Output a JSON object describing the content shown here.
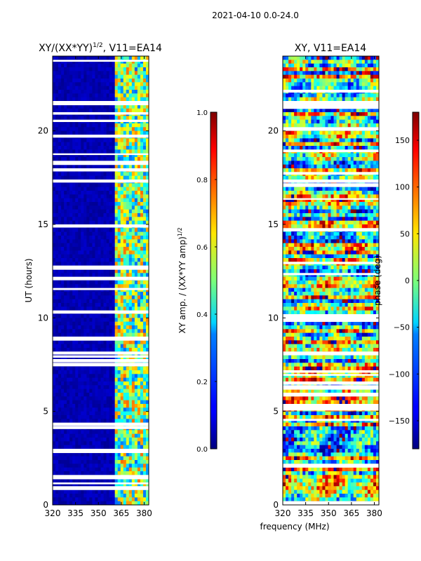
{
  "figure": {
    "suptitle": "2021-04-10 0.0-24.0",
    "xlabel": "frequency (MHz)"
  },
  "chart_data": [
    {
      "type": "heatmap",
      "title_main": "XY/(XX*YY)",
      "title_sup": "1/2",
      "title_tail": ", V11=EA14",
      "ylabel": "UT (hours)",
      "xlim": [
        320,
        383
      ],
      "ylim": [
        0,
        24
      ],
      "xticks": [
        320,
        335,
        350,
        365,
        380
      ],
      "yticks": [
        0,
        5,
        10,
        15,
        20
      ],
      "colorscale": "jet",
      "colorbar": {
        "label_main": "XY amp. / (XX*YY amp)",
        "label_sup": "1/2",
        "range": [
          0.0,
          1.0
        ],
        "ticks": [
          0.0,
          0.2,
          0.4,
          0.6,
          0.8,
          1.0
        ],
        "tick_labels": [
          "0.0",
          "0.2",
          "0.4",
          "0.6",
          "0.8",
          "1.0"
        ]
      }
    },
    {
      "type": "heatmap",
      "title": "XY, V11=EA14",
      "xlim": [
        320,
        383
      ],
      "ylim": [
        0,
        24
      ],
      "xticks": [
        320,
        335,
        350,
        365,
        380
      ],
      "yticks": [
        0,
        5,
        10,
        15,
        20
      ],
      "colorscale": "jet",
      "colorbar": {
        "label": "phase (deg)",
        "range": [
          -180,
          180
        ],
        "ticks": [
          -150,
          -100,
          -50,
          0,
          50,
          100,
          150
        ],
        "tick_labels": [
          "−150",
          "−100",
          "−50",
          "0",
          "50",
          "100",
          "150"
        ]
      }
    }
  ]
}
